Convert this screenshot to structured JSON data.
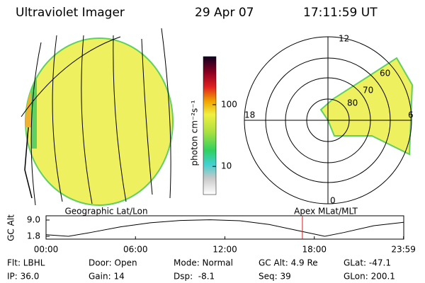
{
  "header": {
    "title": "Ultraviolet Imager",
    "date": "29 Apr 07",
    "time": "17:11:59 UT"
  },
  "colorbar": {
    "label": "photon cm⁻²s⁻¹",
    "scale": "log",
    "clim": [
      3.5,
      600
    ],
    "ticks": [
      10,
      100
    ]
  },
  "polar": {
    "mlt_labels": [
      "12",
      "18",
      "0",
      "6"
    ],
    "mlat_labels": [
      "80",
      "70",
      "60"
    ]
  },
  "altitude": {
    "ylabel": "GC Alt",
    "left_label": "Geographic Lat/Lon",
    "right_label": "Apex MLat/MLT",
    "xlim": [
      0,
      24
    ],
    "ylim": [
      1.8,
      9.0
    ],
    "yticks": [
      {
        "value": 9.0,
        "label": "9.0"
      },
      {
        "value": 1.8,
        "label": "1.8"
      }
    ],
    "xticks": [
      {
        "value": 0,
        "label": "00:00"
      },
      {
        "value": 6,
        "label": "06:00"
      },
      {
        "value": 12,
        "label": "12:00"
      },
      {
        "value": 18,
        "label": "18:00"
      },
      {
        "value": 23.983,
        "label": "23:59"
      }
    ],
    "x": [
      0,
      1.5,
      3,
      5,
      7,
      9,
      11,
      13,
      15,
      17,
      18.7,
      20,
      22,
      23.983
    ],
    "values": [
      2.5,
      1.8,
      3.5,
      6.0,
      7.8,
      8.8,
      9.1,
      8.7,
      7.0,
      4.2,
      1.8,
      3.5,
      6.5,
      8.0
    ],
    "current_time": 17.2,
    "current_color": "#d02020"
  },
  "footer": {
    "rows": [
      [
        "Flt: LBHL",
        "Door: Open",
        "Mode: Normal",
        "GC Alt: 4.9 Re",
        "GLat: -47.1"
      ],
      [
        "IP: 36.0",
        "Gain: 14",
        "Dsp:  -8.1",
        "Seq: 39",
        "GLon: 200.1"
      ]
    ]
  }
}
